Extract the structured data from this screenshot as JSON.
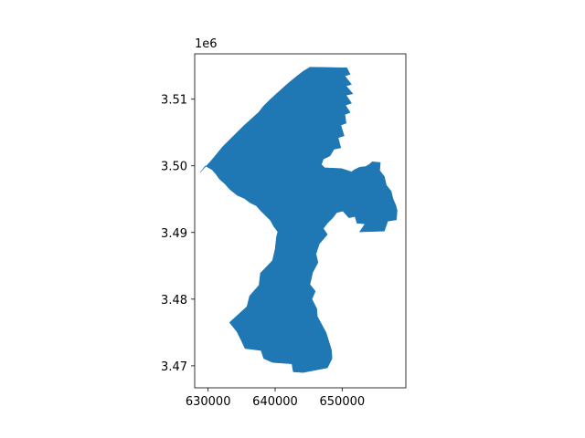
{
  "chart_data": {
    "type": "area",
    "title": "",
    "xlabel": "",
    "ylabel": "",
    "xlim": [
      628000,
      659500
    ],
    "ylim": [
      3466700,
      3516800
    ],
    "y_offset_label": "1e6",
    "x_ticks": [
      630000,
      640000,
      650000
    ],
    "x_tick_labels": [
      "630000",
      "640000",
      "650000"
    ],
    "y_ticks": [
      3470000,
      3480000,
      3490000,
      3500000,
      3510000
    ],
    "y_tick_labels": [
      "3.47",
      "3.48",
      "3.49",
      "3.50",
      "3.51"
    ],
    "grid": false,
    "legend": "none",
    "fill_color": "#1f77b4",
    "polygons": [
      {
        "name": "",
        "x": [
          645200,
          650700,
          651200,
          650400,
          651400,
          650600,
          651600,
          650600,
          651400,
          650500,
          651200,
          650400,
          650600,
          649800,
          650300,
          649400,
          649800,
          648800,
          648200,
          647200,
          646900,
          647400,
          649900,
          651400,
          651800,
          652600,
          653500,
          654000,
          654500,
          655700,
          655600,
          656300,
          656600,
          657300,
          657600,
          658000,
          658200,
          658100,
          656800,
          656300,
          652600,
          653400,
          652200,
          651900,
          651000,
          650100,
          649200,
          648600,
          647800,
          647200,
          647800,
          646600,
          646100,
          646400,
          645600,
          645200,
          646000,
          645500,
          646200,
          646300,
          646900,
          647600,
          648000,
          648400,
          648500,
          647800,
          644200,
          642700,
          642500,
          639600,
          638300,
          637900,
          635500,
          634900,
          634300,
          633200,
          635800,
          636200,
          637600,
          637800,
          639600,
          640000,
          640200,
          640400,
          639800,
          639300,
          638500,
          637700,
          637200,
          636200,
          635400,
          634300,
          633200,
          632500,
          631700,
          631200,
          630600,
          629600,
          628800,
          630400,
          631300,
          632200,
          633200,
          634200,
          635200,
          636400,
          637500,
          638300,
          639300,
          640400,
          641500,
          642300,
          643300,
          644200,
          645200
        ],
        "y": [
          3514800,
          3514700,
          3513700,
          3513500,
          3512200,
          3512000,
          3510800,
          3510600,
          3509400,
          3509100,
          3508000,
          3507700,
          3506400,
          3506100,
          3504500,
          3504200,
          3502700,
          3502500,
          3501500,
          3501000,
          3500200,
          3499700,
          3499600,
          3499100,
          3499400,
          3499800,
          3499900,
          3500200,
          3500600,
          3500500,
          3499300,
          3498400,
          3497100,
          3496200,
          3495000,
          3494100,
          3493300,
          3491900,
          3491700,
          3490200,
          3490100,
          3491300,
          3491400,
          3492400,
          3492200,
          3493200,
          3493000,
          3492200,
          3491400,
          3490600,
          3489700,
          3488300,
          3486800,
          3485500,
          3484000,
          3482200,
          3481200,
          3480000,
          3478600,
          3477400,
          3476300,
          3475000,
          3473700,
          3472400,
          3471100,
          3469700,
          3469000,
          3469100,
          3470300,
          3470500,
          3471100,
          3472300,
          3472600,
          3473900,
          3475100,
          3476500,
          3478900,
          3480500,
          3482100,
          3483900,
          3485800,
          3487500,
          3489400,
          3490100,
          3490900,
          3491800,
          3492600,
          3493400,
          3494000,
          3494500,
          3495100,
          3495600,
          3496500,
          3497300,
          3498000,
          3498700,
          3499400,
          3500000,
          3499000,
          3500700,
          3501800,
          3502900,
          3503900,
          3504900,
          3505900,
          3507000,
          3508000,
          3509000,
          3510000,
          3511000,
          3512000,
          3512700,
          3513500,
          3514200,
          3514800
        ]
      }
    ]
  }
}
